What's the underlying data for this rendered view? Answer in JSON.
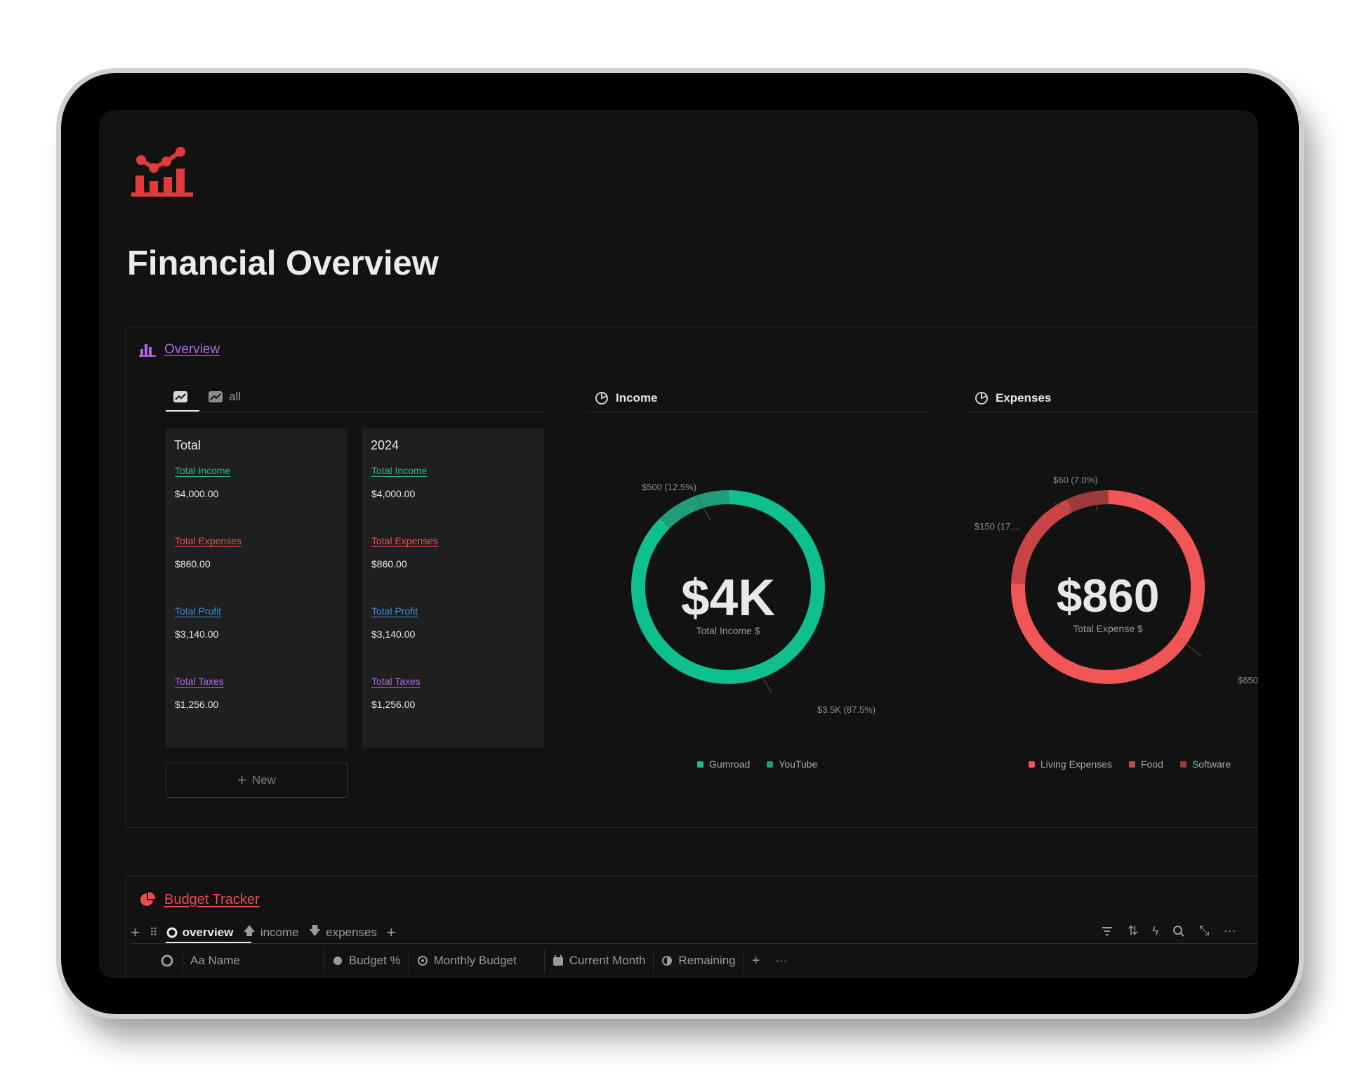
{
  "page": {
    "title": "Financial Overview"
  },
  "overview": {
    "label": "Overview",
    "tabs": [
      {
        "icon": "chart-icon",
        "label": ""
      },
      {
        "icon": "chart-icon",
        "label": "all"
      }
    ],
    "cards": [
      {
        "title": "Total",
        "fields": [
          {
            "label": "Total Income",
            "value": "$4,000.00",
            "color": "#2db38a"
          },
          {
            "label": "Total Expenses",
            "value": "$860.00",
            "color": "#f24b4b"
          },
          {
            "label": "Total Profit",
            "value": "$3,140.00",
            "color": "#3f8fe0"
          },
          {
            "label": "Total Taxes",
            "value": "$1,256.00",
            "color": "#b266e6"
          }
        ]
      },
      {
        "title": "2024",
        "fields": [
          {
            "label": "Total Income",
            "value": "$4,000.00",
            "color": "#2db38a"
          },
          {
            "label": "Total Expenses",
            "value": "$860.00",
            "color": "#f24b4b"
          },
          {
            "label": "Total Profit",
            "value": "$3,140.00",
            "color": "#3f8fe0"
          },
          {
            "label": "Total Taxes",
            "value": "$1,256.00",
            "color": "#b266e6"
          }
        ]
      }
    ],
    "new_label": "New"
  },
  "income": {
    "heading": "Income",
    "center_value": "$4K",
    "center_label": "Total Income $",
    "callouts": [
      "$500 (12.5%)",
      "$3.5K (87.5%)"
    ],
    "legend": [
      {
        "name": "Gumroad",
        "color": "#0fbf8f"
      },
      {
        "name": "YouTube",
        "color": "#1f9d7a"
      }
    ]
  },
  "expenses": {
    "heading": "Expenses",
    "center_value": "$860",
    "center_label": "Total Expense $",
    "callouts": [
      "$60 (7.0%)",
      "$150 (17....",
      "$650"
    ],
    "legend": [
      {
        "name": "Living Expenses",
        "color": "#f25555"
      },
      {
        "name": "Food",
        "color": "#c94545"
      },
      {
        "name": "Software",
        "color": "#9a3a3a"
      }
    ]
  },
  "chart_data": [
    {
      "type": "pie",
      "title": "Income",
      "categories": [
        "Gumroad",
        "YouTube"
      ],
      "values": [
        3500,
        500
      ],
      "center_label": "Total Income $",
      "center_value": "$4K"
    },
    {
      "type": "pie",
      "title": "Expenses",
      "categories": [
        "Living Expenses",
        "Food",
        "Software"
      ],
      "values": [
        650,
        150,
        60
      ],
      "center_label": "Total Expense $",
      "center_value": "$860"
    }
  ],
  "budget_tracker": {
    "label": "Budget Tracker",
    "tabs": [
      {
        "label": "overview",
        "active": true
      },
      {
        "label": "income",
        "active": false
      },
      {
        "label": "expenses",
        "active": false
      }
    ],
    "columns": [
      "Aa Name",
      "Budget %",
      "Monthly Budget",
      "Current Month",
      "Remaining"
    ]
  }
}
